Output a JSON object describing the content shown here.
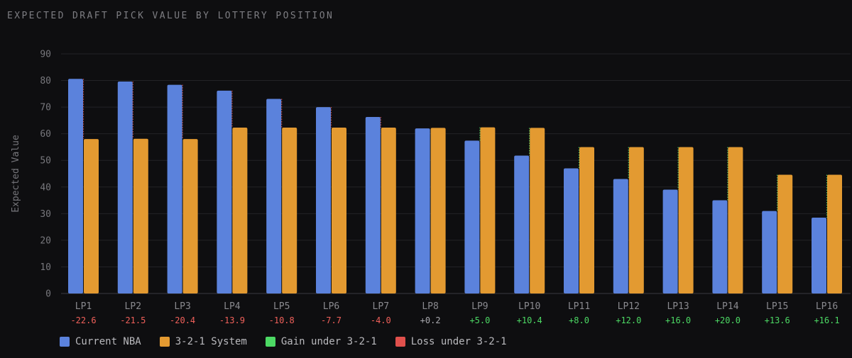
{
  "chart_data": {
    "type": "bar",
    "title": "EXPECTED DRAFT PICK VALUE BY LOTTERY POSITION",
    "ylabel": "Expected Value",
    "xlabel": "",
    "ylim": [
      0,
      90
    ],
    "yticks": [
      0,
      10,
      20,
      30,
      40,
      50,
      60,
      70,
      80,
      90
    ],
    "grid": true,
    "legend_position": "bottom-left",
    "categories": [
      "LP1",
      "LP2",
      "LP3",
      "LP4",
      "LP5",
      "LP6",
      "LP7",
      "LP8",
      "LP9",
      "LP10",
      "LP11",
      "LP12",
      "LP13",
      "LP14",
      "LP15",
      "LP16"
    ],
    "series": [
      {
        "name": "Current NBA",
        "color": "#5b82dc",
        "values": [
          80.6,
          79.6,
          78.4,
          76.2,
          73.1,
          70.0,
          66.3,
          62.0,
          57.4,
          51.8,
          47.0,
          43.0,
          39.0,
          35.0,
          31.0,
          28.5
        ]
      },
      {
        "name": "3-2-1 System",
        "color": "#e39a31",
        "values": [
          58.0,
          58.1,
          58.0,
          62.3,
          62.3,
          62.3,
          62.3,
          62.2,
          62.4,
          62.2,
          55.0,
          55.0,
          55.0,
          55.0,
          44.6,
          44.6
        ]
      }
    ],
    "differences": [
      "-22.6",
      "-21.5",
      "-20.4",
      "-13.9",
      "-10.8",
      "-7.7",
      "-4.0",
      "+0.2",
      "+5.0",
      "+10.4",
      "+8.0",
      "+12.0",
      "+16.0",
      "+20.0",
      "+13.6",
      "+16.1"
    ],
    "difference_colors": {
      "gain": "#4cd964",
      "loss": "#f0605a",
      "neutral": "#a9a9ae"
    },
    "legend": [
      {
        "label": "Current NBA",
        "color": "#5b82dc"
      },
      {
        "label": "3-2-1 System",
        "color": "#e39a31"
      },
      {
        "label": "Gain under 3-2-1",
        "color": "#4cd964"
      },
      {
        "label": "Loss under 3-2-1",
        "color": "#e0504c"
      }
    ]
  }
}
